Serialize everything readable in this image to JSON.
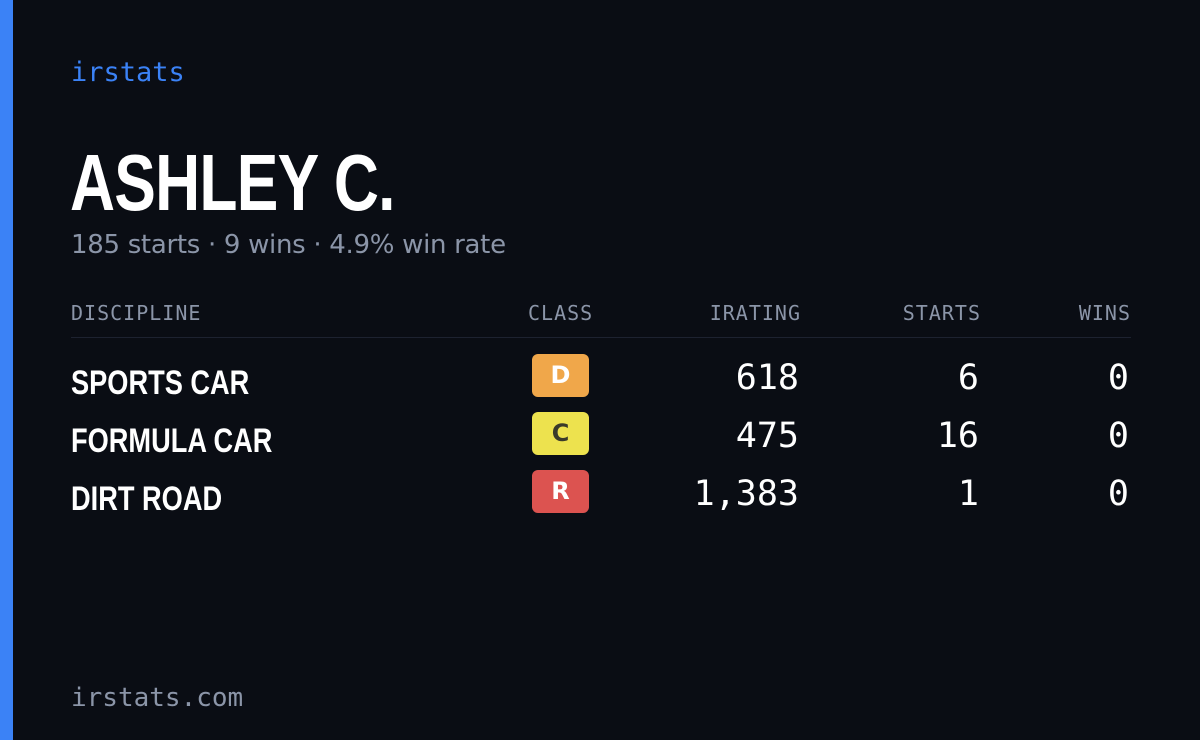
{
  "brand": "irstats",
  "driver": {
    "name": "ASHLEY C.",
    "summary": "185 starts · 9 wins · 4.9% win rate"
  },
  "table": {
    "headers": {
      "discipline": "DISCIPLINE",
      "class": "CLASS",
      "irating": "IRATING",
      "starts": "STARTS",
      "wins": "WINS"
    },
    "rows": [
      {
        "discipline": "SPORTS CAR",
        "class": "D",
        "class_color": "#f0a74a",
        "class_text_color": "#ffffff",
        "irating": "618",
        "starts": "6",
        "wins": "0"
      },
      {
        "discipline": "FORMULA CAR",
        "class": "C",
        "class_color": "#ede24e",
        "class_text_color": "#3a3a2a",
        "irating": "475",
        "starts": "16",
        "wins": "0"
      },
      {
        "discipline": "DIRT ROAD",
        "class": "R",
        "class_color": "#dc5350",
        "class_text_color": "#ffffff",
        "irating": "1,383",
        "starts": "1",
        "wins": "0"
      }
    ]
  },
  "footer": "irstats.com",
  "colors": {
    "accent": "#3b82f6",
    "background": "#0a0d14",
    "muted": "#8b95a8"
  }
}
